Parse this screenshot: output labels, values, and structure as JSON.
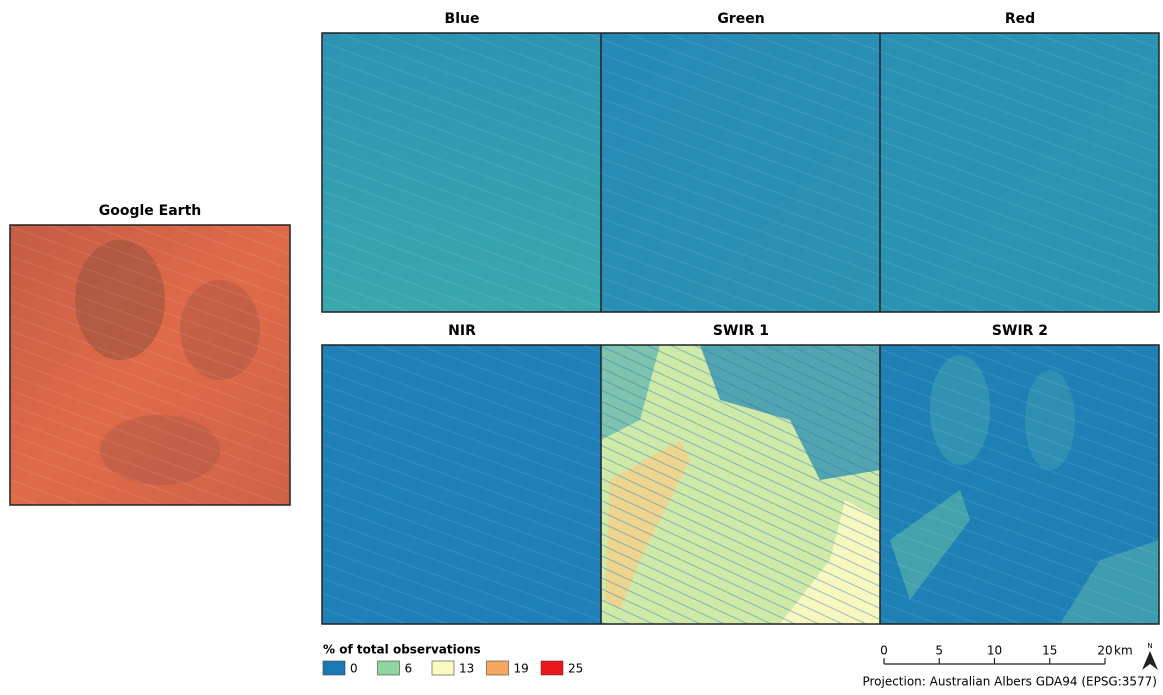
{
  "panels": [
    {
      "title": "Google Earth"
    },
    {
      "title": "Blue"
    },
    {
      "title": "Green"
    },
    {
      "title": "Red"
    },
    {
      "title": "NIR"
    },
    {
      "title": "SWIR 1"
    },
    {
      "title": "SWIR 2"
    }
  ],
  "legend": {
    "title": "% of total observations",
    "items": [
      {
        "label": "0",
        "color": "#1a78b4"
      },
      {
        "label": "6",
        "color": "#8fd6a0"
      },
      {
        "label": "13",
        "color": "#fbfbbf"
      },
      {
        "label": "19",
        "color": "#f7a85e"
      },
      {
        "label": "25",
        "color": "#e8171c"
      }
    ]
  },
  "scale_bar": {
    "ticks": [
      "0",
      "5",
      "10",
      "15",
      "20"
    ],
    "unit": "km"
  },
  "north_arrow": "N",
  "projection": "Projection: Australian Albers GDA94 (EPSG:3577)"
}
